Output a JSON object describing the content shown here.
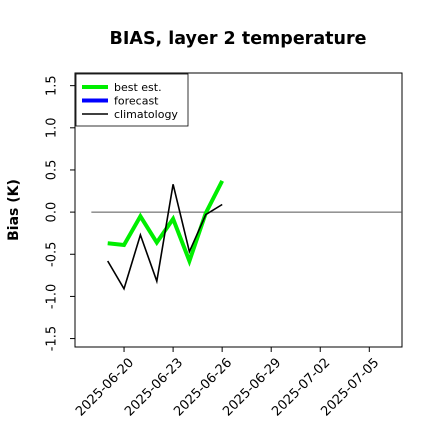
{
  "chart_data": {
    "type": "line",
    "title": "BIAS, layer 2 temperature",
    "xlabel": "",
    "ylabel": "Bias (K)",
    "xlim": [
      "2025-06-17",
      "2025-07-07"
    ],
    "ylim": [
      -1.6,
      1.65
    ],
    "yticks": [
      -1.5,
      -1.0,
      -0.5,
      0.0,
      0.5,
      1.0,
      1.5
    ],
    "ytick_labels": [
      "-1.5",
      "-1.0",
      "-0.5",
      "0.0",
      "0.5",
      "1.0",
      "1.5"
    ],
    "xticks": [
      "2025-06-20",
      "2025-06-23",
      "2025-06-26",
      "2025-06-29",
      "2025-07-02",
      "2025-07-05"
    ],
    "xtick_labels": [
      "2025-06-20",
      "2025-06-23",
      "2025-06-26",
      "2025-06-29",
      "2025-07-02",
      "2025-07-05"
    ],
    "highlight_tick": "2025-06-26",
    "highlight_color": "#2e8b2e",
    "zero_line": {
      "from": "2025-06-18",
      "to": "2025-07-07",
      "color": "#555555"
    },
    "grid": false,
    "legend_position": "top-left",
    "series": [
      {
        "name": "best est.",
        "color": "#00ee00",
        "x": [
          "2025-06-19",
          "2025-06-20",
          "2025-06-21",
          "2025-06-22",
          "2025-06-23",
          "2025-06-24",
          "2025-06-25",
          "2025-06-26"
        ],
        "values": [
          -0.37,
          -0.39,
          -0.05,
          -0.36,
          -0.08,
          -0.58,
          -0.01,
          0.37
        ]
      },
      {
        "name": "forecast",
        "color": "#0000ff",
        "x": [],
        "values": []
      },
      {
        "name": "climatology",
        "color": "#000000",
        "x": [
          "2025-06-19",
          "2025-06-20",
          "2025-06-21",
          "2025-06-22",
          "2025-06-23",
          "2025-06-24",
          "2025-06-25",
          "2025-06-26"
        ],
        "values": [
          -0.58,
          -0.91,
          -0.27,
          -0.82,
          0.33,
          -0.47,
          -0.03,
          0.09
        ]
      }
    ]
  }
}
